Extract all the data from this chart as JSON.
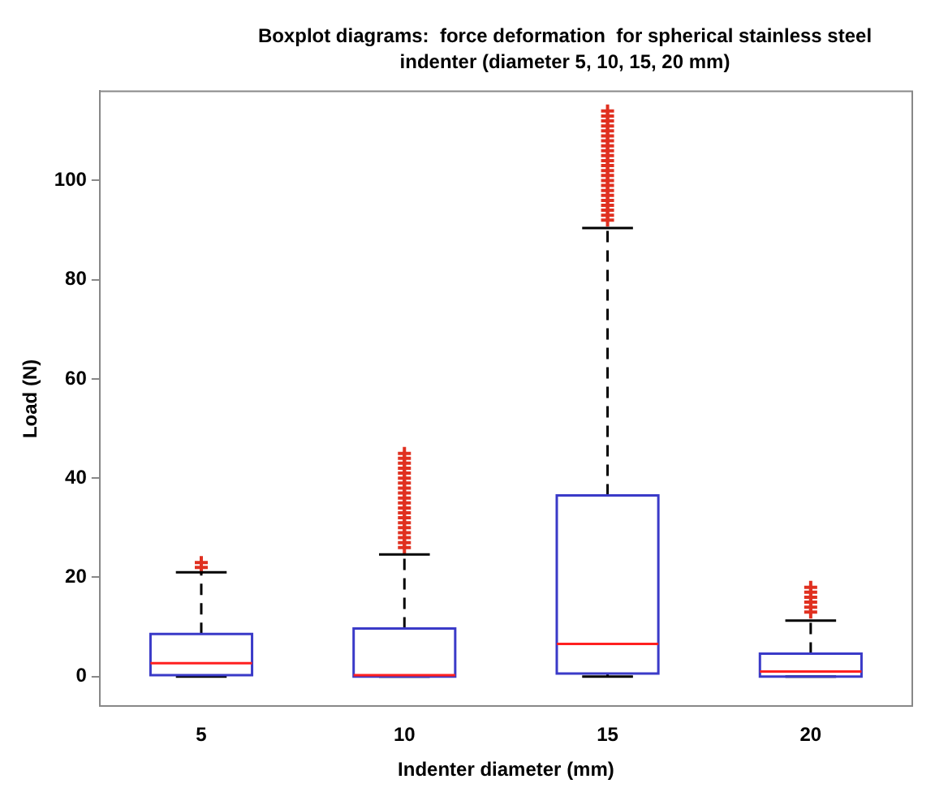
{
  "chart_data": {
    "type": "box",
    "title": "Boxplot diagrams:  force deformation  for spherical stainless steel indenter (diameter 5, 10, 15, 20 mm)",
    "xlabel": "Indenter diameter (mm)",
    "ylabel": "Load (N)",
    "categories": [
      "5",
      "10",
      "15",
      "20"
    ],
    "color": "#3a3ac8",
    "marker": "cross",
    "grid": false,
    "ylim": [
      -6,
      118
    ],
    "yticks": [
      0,
      20,
      40,
      60,
      80,
      100
    ],
    "boxes": [
      {
        "low": 0,
        "q1": 0.3,
        "median": 2.7,
        "q3": 8.6,
        "high": 21,
        "outliers": [
          22,
          23
        ]
      },
      {
        "low": 0,
        "q1": 0,
        "median": 0.3,
        "q3": 9.7,
        "high": 24.6,
        "outliers": [
          26,
          27,
          28,
          29,
          30,
          31,
          32,
          33,
          34,
          35,
          36,
          37,
          38,
          39,
          40,
          41,
          42,
          43,
          44,
          45
        ]
      },
      {
        "low": 0,
        "q1": 0.6,
        "median": 6.6,
        "q3": 36.5,
        "high": 90.4,
        "outliers": [
          92,
          93,
          94,
          95,
          96,
          97,
          98,
          99,
          100,
          101,
          102,
          103,
          104,
          105,
          106,
          107,
          108,
          109,
          110,
          111,
          112,
          113,
          114
        ]
      },
      {
        "low": 0,
        "q1": 0,
        "median": 1,
        "q3": 4.6,
        "high": 11.3,
        "outliers": [
          13,
          14,
          15,
          16,
          17,
          18
        ]
      }
    ]
  }
}
